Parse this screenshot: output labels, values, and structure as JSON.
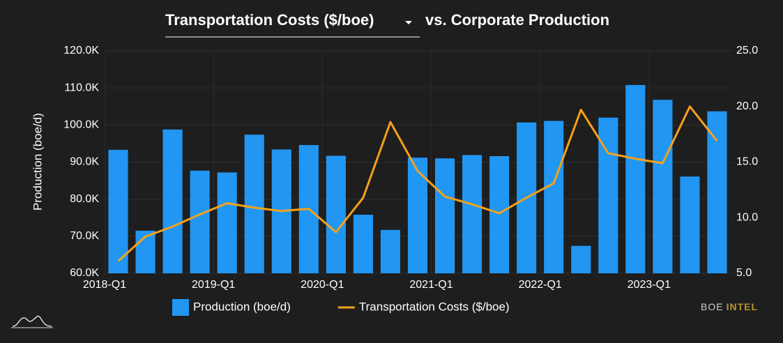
{
  "chart_data": {
    "type": "bar_line",
    "title_selector": "Transportation Costs ($/boe)",
    "title_suffix": "vs. Corporate Production",
    "ylabel": "Production (boe/d)",
    "categories": [
      "2018-Q1",
      null,
      null,
      null,
      "2019-Q1",
      null,
      null,
      null,
      "2020-Q1",
      null,
      null,
      null,
      "2021-Q1",
      null,
      null,
      null,
      "2022-Q1",
      null,
      null,
      null,
      "2023-Q1",
      null,
      null
    ],
    "series": [
      {
        "name": "Production (boe/d)",
        "color": "#2196f3",
        "type": "bar",
        "axis": "y",
        "values": [
          93300,
          71500,
          98800,
          87700,
          87200,
          97400,
          93400,
          94600,
          91700,
          75800,
          71700,
          91200,
          91000,
          91900,
          91600,
          100700,
          101100,
          67400,
          102000,
          110800,
          106800,
          86100,
          103700
        ]
      },
      {
        "name": "Transportation Costs ($/boe)",
        "color": "#f7a11a",
        "type": "line",
        "axis": "y2",
        "values": [
          6.1,
          8.3,
          9.2,
          10.3,
          11.3,
          10.9,
          10.6,
          10.8,
          8.7,
          11.8,
          18.6,
          14.2,
          11.9,
          11.2,
          10.4,
          11.8,
          13.1,
          19.7,
          15.8,
          15.3,
          14.9,
          20.0,
          16.9
        ]
      }
    ],
    "ylim": [
      60000,
      120000
    ],
    "yticks": [
      {
        "value": 60000,
        "label": "60.0K"
      },
      {
        "value": 70000,
        "label": "70.0K"
      },
      {
        "value": 80000,
        "label": "80.0K"
      },
      {
        "value": 90000,
        "label": "90.0K"
      },
      {
        "value": 100000,
        "label": "100.0K"
      },
      {
        "value": 110000,
        "label": "110.0K"
      },
      {
        "value": 120000,
        "label": "120.0K"
      }
    ],
    "y2lim": [
      5,
      25
    ],
    "y2ticks": [
      {
        "value": 5,
        "label": "5.0"
      },
      {
        "value": 10,
        "label": "10.0"
      },
      {
        "value": 15,
        "label": "15.0"
      },
      {
        "value": 20,
        "label": "20.0"
      },
      {
        "value": 25,
        "label": "25.0"
      }
    ],
    "grid": true,
    "legend": "bottom",
    "brand": [
      "BOE",
      "INTEL"
    ]
  }
}
